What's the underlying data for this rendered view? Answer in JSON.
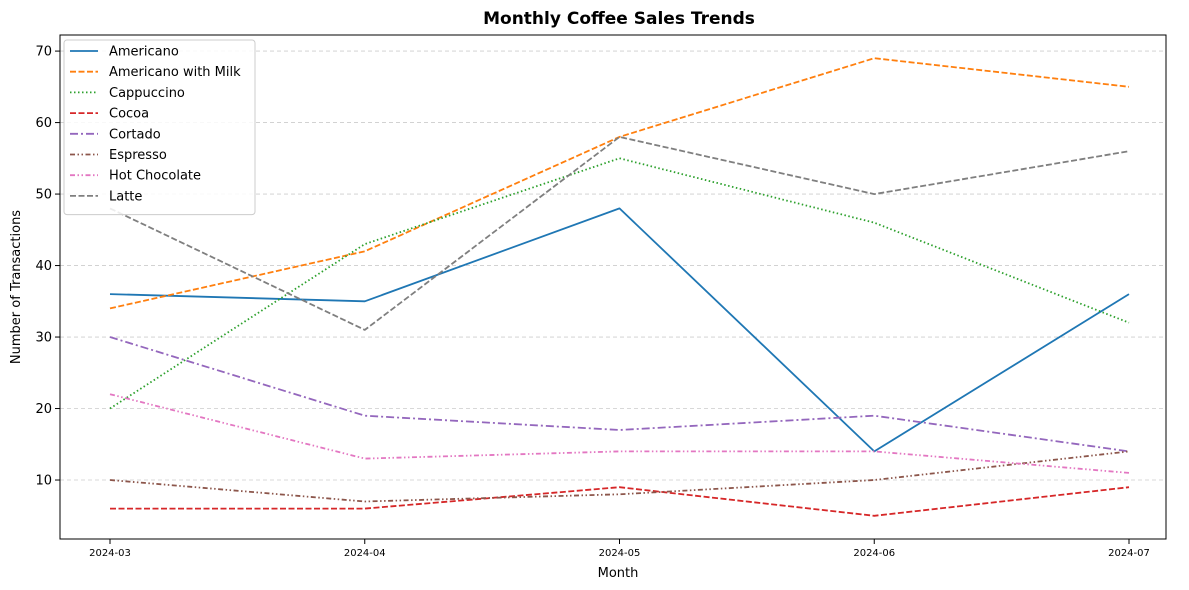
{
  "chart_data": {
    "type": "line",
    "title": "Monthly Coffee Sales Trends",
    "xlabel": "Month",
    "ylabel": "Number of Transactions",
    "categories": [
      "2024-03",
      "2024-04",
      "2024-05",
      "2024-06",
      "2024-07"
    ],
    "yticks": [
      10,
      20,
      30,
      40,
      50,
      60,
      70
    ],
    "ylim": [
      1.75,
      72.25
    ],
    "grid": "y-dashed",
    "legend_position": "top-left",
    "series": [
      {
        "name": "Americano",
        "values": [
          36,
          35,
          48,
          14,
          36
        ],
        "color": "#1f77b4",
        "dash": "solid"
      },
      {
        "name": "Americano with Milk",
        "values": [
          34,
          42,
          58,
          69,
          65
        ],
        "color": "#ff7f0e",
        "dash": "dashed"
      },
      {
        "name": "Cappuccino",
        "values": [
          20,
          43,
          55,
          46,
          32
        ],
        "color": "#2ca02c",
        "dash": "dotted"
      },
      {
        "name": "Cocoa",
        "values": [
          6,
          6,
          9,
          5,
          9
        ],
        "color": "#d62728",
        "dash": "dashed"
      },
      {
        "name": "Cortado",
        "values": [
          30,
          19,
          17,
          19,
          14
        ],
        "color": "#9467bd",
        "dash": "dashdot"
      },
      {
        "name": "Espresso",
        "values": [
          10,
          7,
          8,
          10,
          14
        ],
        "color": "#8c564b",
        "dash": "dashdotdot"
      },
      {
        "name": "Hot Chocolate",
        "values": [
          22,
          13,
          14,
          14,
          11
        ],
        "color": "#e377c2",
        "dash": "dashdotdot"
      },
      {
        "name": "Latte",
        "values": [
          48,
          31,
          58,
          50,
          56
        ],
        "color": "#7f7f7f",
        "dash": "dashed"
      }
    ]
  }
}
